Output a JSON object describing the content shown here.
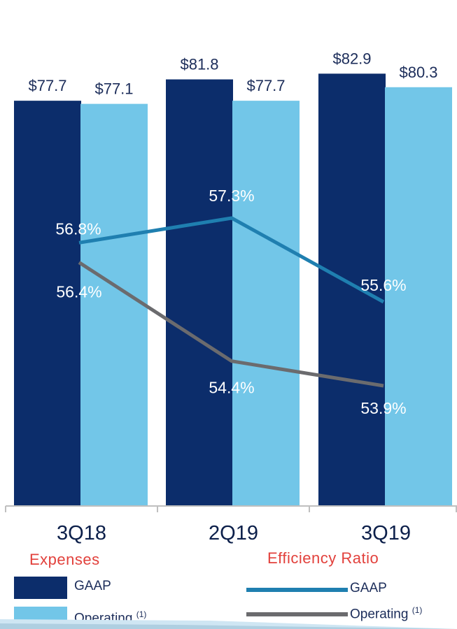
{
  "chart_data": {
    "type": "bar",
    "categories": [
      "3Q18",
      "2Q19",
      "3Q19"
    ],
    "ylim": [
      0,
      85
    ],
    "series": [
      {
        "name": "GAAP",
        "color": "#0c2d6b",
        "values": [
          77.7,
          81.8,
          82.9
        ],
        "labels": [
          "$77.7",
          "$81.8",
          "$82.9"
        ]
      },
      {
        "name": "Operating",
        "color": "#72c6e8",
        "values": [
          77.1,
          77.7,
          80.3
        ],
        "labels": [
          "$77.1",
          "$77.7",
          "$80.3"
        ]
      }
    ],
    "lines": [
      {
        "name": "GAAP",
        "color": "#1f7fb0",
        "values": [
          56.8,
          57.3,
          55.6
        ],
        "labels": [
          "56.8%",
          "57.3%",
          "55.6%"
        ]
      },
      {
        "name": "Operating",
        "color": "#6b6b6e",
        "values": [
          56.4,
          54.4,
          53.9
        ],
        "labels": [
          "56.4%",
          "54.4%",
          "53.9%"
        ]
      }
    ]
  },
  "legend": {
    "expenses": {
      "title": "Expenses",
      "items": [
        {
          "label": "GAAP",
          "sup": "",
          "color": "#0c2d6b"
        },
        {
          "label": "Operating",
          "sup": "(1)",
          "color": "#72c6e8"
        }
      ]
    },
    "efficiency": {
      "title": "Efficiency Ratio",
      "items": [
        {
          "label": "GAAP",
          "sup": "",
          "color": "#1f7fb0"
        },
        {
          "label": "Operating",
          "sup": "(1)",
          "color": "#6b6b6e"
        }
      ]
    }
  }
}
